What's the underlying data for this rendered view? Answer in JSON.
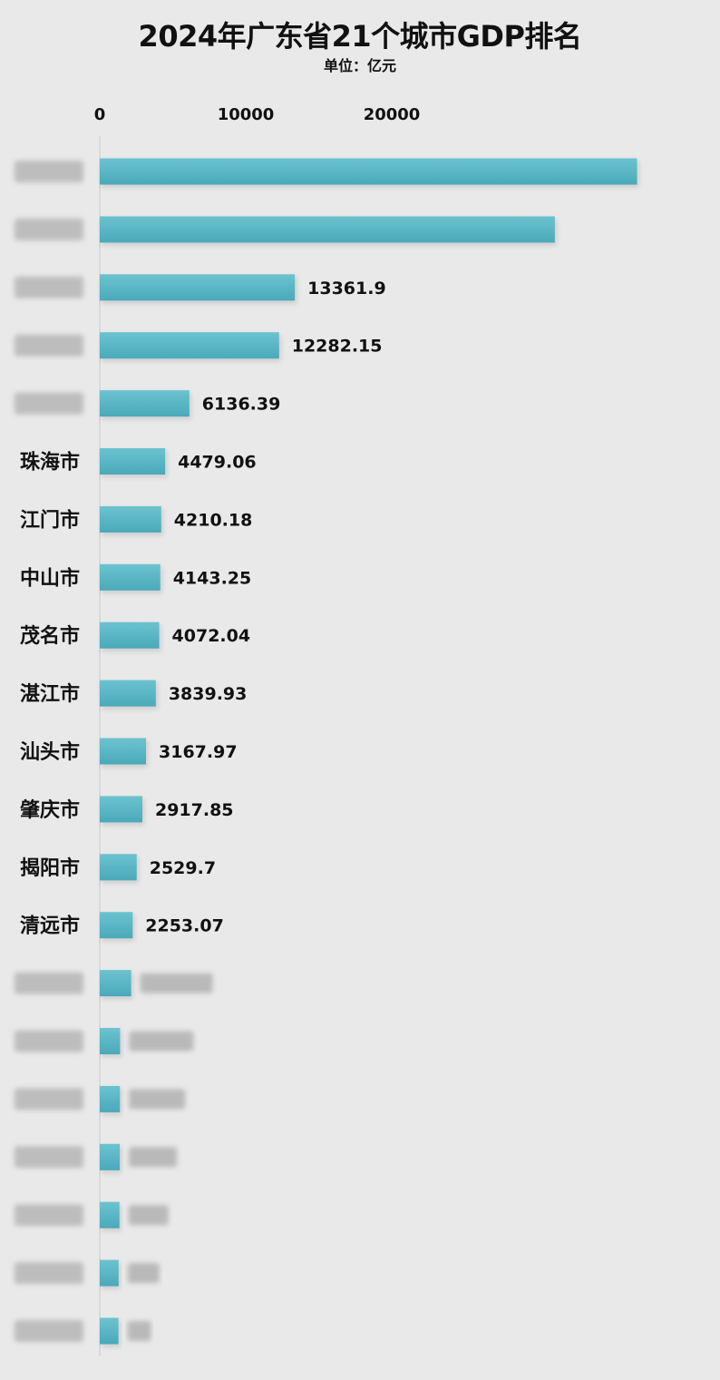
{
  "title": "2024年广东省21个城市GDP排名",
  "subtitle": "单位：亿元",
  "colors": {
    "bar": "#5ab7c5",
    "bar_dark": "#3f9fb0",
    "background": "#e9e9e9",
    "axis": "#c9c9c9"
  },
  "chart_data": {
    "type": "bar",
    "orientation": "horizontal",
    "title": "2024年广东省21个城市GDP排名",
    "unit": "单位：亿元",
    "xlim": [
      0,
      32000
    ],
    "xticks": [
      0,
      10000,
      20000
    ],
    "tick_labels": [
      "0",
      "10000",
      "20000"
    ],
    "categories": [
      "",
      "",
      "",
      "",
      "",
      "珠海市",
      "江门市",
      "中山市",
      "茂名市",
      "湛江市",
      "汕头市",
      "肇庆市",
      "揭阳市",
      "清远市",
      "",
      "",
      "",
      "",
      "",
      "",
      ""
    ],
    "values": [
      36802,
      31170,
      13361.9,
      12282.15,
      6136.39,
      4479.06,
      4210.18,
      4143.25,
      4072.04,
      3839.93,
      3167.97,
      2917.85,
      2529.7,
      2253.07,
      2150,
      1390,
      1380,
      1370,
      1350,
      1290,
      1280
    ],
    "value_labels": [
      "",
      "",
      "13361.9",
      "12282.15",
      "6136.39",
      "4479.06",
      "4210.18",
      "4143.25",
      "4072.04",
      "3839.93",
      "3167.97",
      "2917.85",
      "2529.7",
      "2253.07",
      "",
      "",
      "",
      "",
      "",
      "",
      ""
    ],
    "grid": false,
    "legend": "none"
  }
}
